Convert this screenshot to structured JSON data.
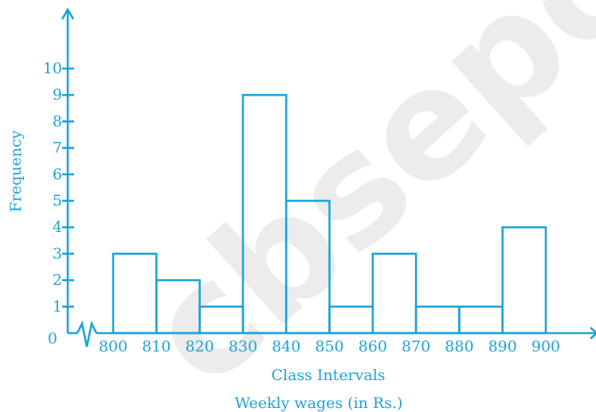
{
  "chart_data": {
    "type": "bar",
    "title": "",
    "xlabel": "Class Intervals",
    "xlabel_sub": "Weekly wages (in Rs.)",
    "ylabel": "Frequency",
    "x_ticks": [
      "800",
      "810",
      "820",
      "830",
      "840",
      "850",
      "860",
      "870",
      "880",
      "890",
      "900"
    ],
    "y_ticks": [
      "0",
      "1",
      "2",
      "3",
      "4",
      "5",
      "6",
      "7",
      "8",
      "9",
      "10"
    ],
    "bins": [
      {
        "from": 800,
        "to": 810,
        "value": 3
      },
      {
        "from": 810,
        "to": 820,
        "value": 2
      },
      {
        "from": 820,
        "to": 830,
        "value": 1
      },
      {
        "from": 830,
        "to": 840,
        "value": 9
      },
      {
        "from": 840,
        "to": 850,
        "value": 5
      },
      {
        "from": 850,
        "to": 860,
        "value": 1
      },
      {
        "from": 860,
        "to": 870,
        "value": 3
      },
      {
        "from": 870,
        "to": 880,
        "value": 1
      },
      {
        "from": 880,
        "to": 890,
        "value": 1
      },
      {
        "from": 890,
        "to": 900,
        "value": 4
      }
    ],
    "xlim": [
      800,
      900
    ],
    "ylim": [
      0,
      10
    ],
    "axis_break": true,
    "grid": false,
    "color": "#1fa3d6"
  },
  "watermark": "cbseportal"
}
